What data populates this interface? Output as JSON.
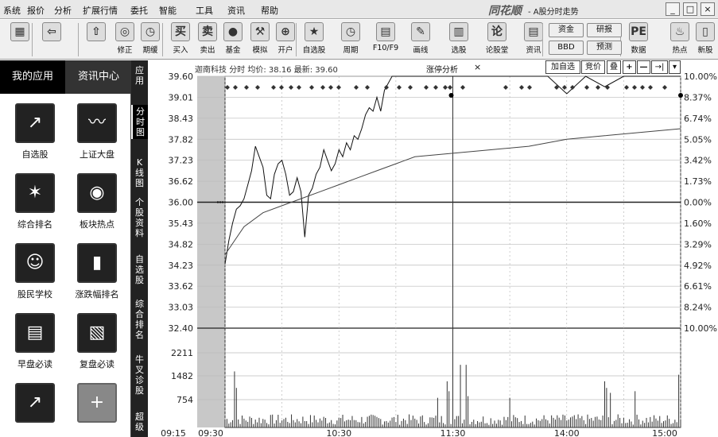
{
  "menubar": {
    "items": [
      "系统",
      "报价",
      "分析",
      "扩展行情",
      "委托",
      "智能",
      "工具",
      "资讯",
      "帮助"
    ],
    "brand": "同花顺",
    "title": "- A股分时走势",
    "win_buttons": [
      "_",
      "□",
      "×"
    ]
  },
  "toolbar": {
    "buttons": [
      {
        "label": "",
        "icon": "▦"
      },
      {
        "label": "",
        "icon": "⇦"
      },
      {
        "label": "",
        "icon": "⇧"
      },
      {
        "label": "修正",
        "icon": "◎"
      },
      {
        "label": "期缓",
        "icon": "◷"
      },
      {
        "label": "买入",
        "icon": "买"
      },
      {
        "label": "卖出",
        "icon": "卖"
      },
      {
        "label": "基金",
        "icon": "●"
      },
      {
        "label": "模拟",
        "icon": "⚒"
      },
      {
        "label": "开户",
        "icon": "⊕"
      },
      {
        "label": "自选股",
        "icon": "★"
      },
      {
        "label": "周期",
        "icon": "◷"
      },
      {
        "label": "F10/F9",
        "icon": "▤"
      },
      {
        "label": "画线",
        "icon": "✎"
      },
      {
        "label": "选股",
        "icon": "▥"
      },
      {
        "label": "论股堂",
        "icon": "论"
      },
      {
        "label": "资讯",
        "icon": "▤"
      },
      {
        "label": "数据",
        "icon": "PE"
      },
      {
        "label": "热点",
        "icon": "♨"
      },
      {
        "label": "新股",
        "icon": "▯"
      }
    ],
    "small_buttons": [
      "资金",
      "研报",
      "BBD",
      "预测"
    ]
  },
  "left_tabs": [
    "我的应用",
    "资讯中心"
  ],
  "apps": [
    {
      "label": "自选股",
      "icon": "↗"
    },
    {
      "label": "上证大盘",
      "icon": "〰"
    },
    {
      "label": "综合排名",
      "icon": "✶"
    },
    {
      "label": "板块热点",
      "icon": "◉"
    },
    {
      "label": "股民学校",
      "icon": "☺"
    },
    {
      "label": "涨跌幅排名",
      "icon": "▮"
    },
    {
      "label": "早盘必读",
      "icon": "▤"
    },
    {
      "label": "复盘必读",
      "icon": "▧"
    },
    {
      "label": "",
      "icon": "↗"
    },
    {
      "label": "",
      "icon": "+"
    }
  ],
  "vtabs": [
    "应用",
    "分时图",
    "K线图",
    "个股资料",
    "自选股",
    "综合排名",
    "牛叉诊股",
    "超级"
  ],
  "chart_header": {
    "stock_name": "迦南科技",
    "info": "分时 均价: 38.16 最新: 39.60",
    "pane_tab": "涨停分析",
    "pane_close": "×",
    "buttons": [
      "加自选",
      "竞价",
      "叠",
      "+",
      "—",
      "→|",
      "▾"
    ]
  },
  "chart_data": {
    "type": "line",
    "price_ticks": [
      "39.60",
      "39.01",
      "38.43",
      "37.82",
      "37.23",
      "36.62",
      "36.00",
      "35.43",
      "34.82",
      "34.23",
      "33.62",
      "33.03",
      "32.40"
    ],
    "pct_ticks": [
      "10.00%",
      "8.37%",
      "6.74%",
      "5.05%",
      "3.42%",
      "1.73%",
      "0.00%",
      "1.60%",
      "3.29%",
      "4.92%",
      "6.61%",
      "8.24%",
      "10.00%"
    ],
    "volume_ticks": [
      "2211",
      "1482",
      "754"
    ],
    "time_labels": [
      "09:15",
      "09:30",
      "10:30",
      "11:30",
      "14:00",
      "15:00"
    ],
    "ylim": [
      32.4,
      39.6
    ],
    "prev_close": 36.0,
    "price_series": {
      "name": "price",
      "x": [
        0,
        2,
        4,
        6,
        8,
        10,
        12,
        14,
        16,
        18,
        20,
        22,
        24,
        26,
        28,
        30,
        32,
        34,
        36,
        38,
        40,
        42,
        44,
        46,
        48,
        50,
        52,
        54,
        56,
        58,
        60,
        62,
        64,
        66,
        68,
        70,
        72,
        74,
        76,
        78,
        80,
        82,
        84,
        86,
        88,
        90,
        92,
        94,
        96,
        98,
        100,
        102,
        104,
        106,
        108,
        110,
        112,
        114,
        116,
        118,
        120,
        130,
        140,
        150,
        160,
        170,
        180,
        190,
        200,
        210,
        220,
        230,
        240
      ],
      "values": [
        34.23,
        34.9,
        35.4,
        35.8,
        35.9,
        36.1,
        36.5,
        36.9,
        37.6,
        37.3,
        37.0,
        36.2,
        36.1,
        36.8,
        37.1,
        37.2,
        36.8,
        36.2,
        36.3,
        36.7,
        36.3,
        35.0,
        36.2,
        36.4,
        36.8,
        37.0,
        37.5,
        37.2,
        36.9,
        37.1,
        37.5,
        37.3,
        37.7,
        37.5,
        37.9,
        37.8,
        38.1,
        38.5,
        38.7,
        38.6,
        39.0,
        38.6,
        39.2,
        39.4,
        39.6,
        39.6,
        39.6,
        39.6,
        39.6,
        39.6,
        39.6,
        39.6,
        39.6,
        39.6,
        39.6,
        39.6,
        39.6,
        39.6,
        39.6,
        39.6,
        39.6,
        39.6,
        39.6,
        39.6,
        39.6,
        39.6,
        39.1,
        39.6,
        39.3,
        39.6,
        39.6,
        39.6,
        39.6
      ]
    },
    "avg_series": {
      "name": "avg",
      "x": [
        0,
        10,
        20,
        30,
        40,
        50,
        60,
        70,
        80,
        90,
        100,
        120,
        140,
        160,
        180,
        200,
        220,
        240
      ],
      "values": [
        34.5,
        35.3,
        35.7,
        35.9,
        36.1,
        36.3,
        36.5,
        36.7,
        36.9,
        37.1,
        37.3,
        37.4,
        37.5,
        37.6,
        37.8,
        37.9,
        38.0,
        38.1
      ]
    },
    "volume_max": 2940,
    "grid": true
  }
}
